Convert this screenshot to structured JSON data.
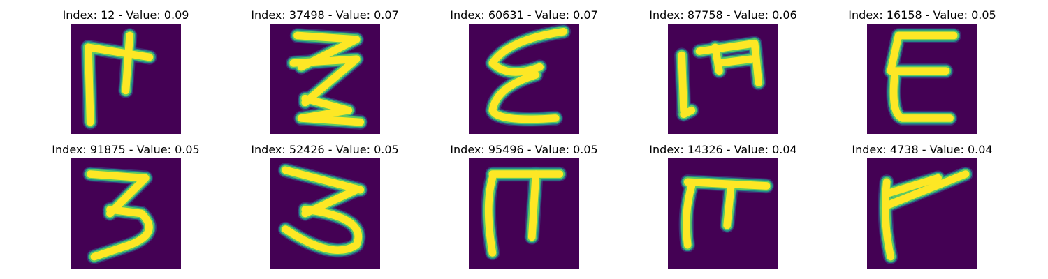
{
  "colors": {
    "background": "#440154",
    "stroke_core": "#fde725",
    "stroke_edge_1": "#5ec962",
    "stroke_edge_2": "#21918c",
    "stroke_edge_3": "#3b528b"
  },
  "panels": [
    {
      "title": "Index: 12 - Value: 0.09",
      "glyph": "ш-cross"
    },
    {
      "title": "Index: 37498 - Value: 0.07",
      "glyph": "zigzag"
    },
    {
      "title": "Index: 60631 - Value: 0.07",
      "glyph": "epsilon-slanted"
    },
    {
      "title": "Index: 87758 - Value: 0.06",
      "glyph": "ш-open"
    },
    {
      "title": "Index: 16158 - Value: 0.05",
      "glyph": "epsilon"
    },
    {
      "title": "Index: 91875 - Value: 0.05",
      "glyph": "three"
    },
    {
      "title": "Index: 52426 - Value: 0.05",
      "glyph": "three-wide"
    },
    {
      "title": "Index: 95496 - Value: 0.05",
      "glyph": "pi"
    },
    {
      "title": "Index: 14326 - Value: 0.04",
      "glyph": "pi-small"
    },
    {
      "title": "Index: 4738 - Value: 0.04",
      "glyph": "gamma-slanted"
    }
  ]
}
